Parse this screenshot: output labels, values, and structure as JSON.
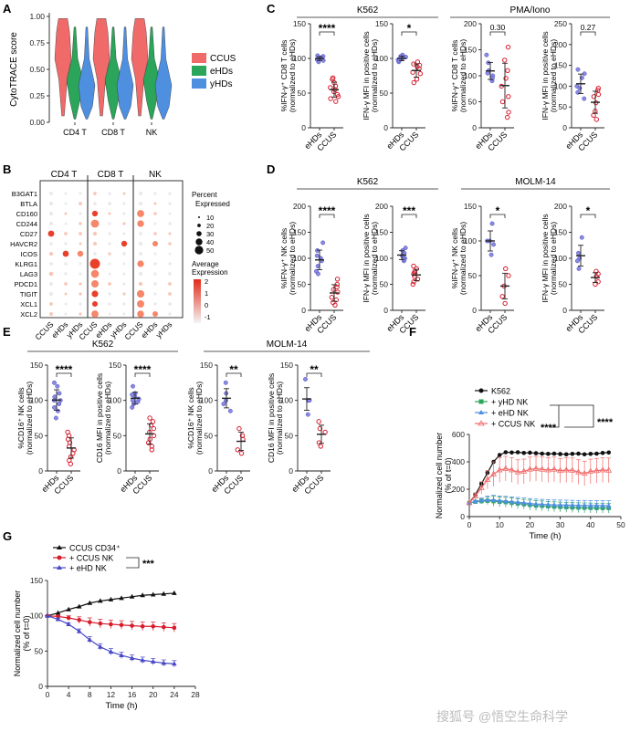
{
  "footer": {
    "watermark": "搜狐号 @悟空生命科学"
  },
  "colors": {
    "ccus": "#f06a6a",
    "ehds": "#2aa55a",
    "yhds": "#4f8fe0",
    "blue": "#4848c8",
    "red": "#d81b2c",
    "black": "#111111",
    "dot": "#e84a3c"
  },
  "panels": {
    "A": "A",
    "B": "B",
    "C": "C",
    "D": "D",
    "E": "E",
    "F": "F",
    "G": "G"
  },
  "chart_data": [
    {
      "id": "A",
      "type": "violin",
      "ylabel": "CytoTRACE score",
      "ylim": [
        0,
        1
      ],
      "yticks": [
        "0.00",
        "0.25",
        "0.50",
        "0.75",
        "1.00"
      ],
      "categories": [
        "CD4 T",
        "CD8 T",
        "NK"
      ],
      "series": [
        {
          "name": "CCUS"
        },
        {
          "name": "eHDs"
        },
        {
          "name": "yHDs"
        }
      ]
    },
    {
      "id": "B",
      "type": "dotplot",
      "groups": [
        "CD4 T",
        "CD8 T",
        "NK"
      ],
      "xlabels": [
        "CCUS",
        "eHDs",
        "yHDs"
      ],
      "genes": [
        "B3GAT1",
        "BTLA",
        "CD160",
        "CD244",
        "CD27",
        "HAVCR2",
        "ICOS",
        "KLRG1",
        "LAG3",
        "PDCD1",
        "TIGIT",
        "XCL1",
        "XCL2"
      ],
      "size_legend": {
        "title": [
          "Percent",
          "Expressed"
        ],
        "values": [
          "10",
          "20",
          "30",
          "40",
          "50"
        ]
      },
      "color_legend": {
        "title": [
          "Average",
          "Expression"
        ],
        "ticks": [
          "2",
          "1",
          "0",
          "-1"
        ]
      }
    },
    {
      "id": "C",
      "type": "scatter",
      "groups": [
        {
          "title": "K562"
        },
        {
          "title": "PMA/Iono"
        }
      ],
      "plots": [
        {
          "ylabel": [
            "%IFN-γ⁺ CD8 T cells",
            "(normalized to eHDs)"
          ],
          "ylim": [
            0,
            150
          ],
          "yticks": [
            "0",
            "50",
            "100",
            "150"
          ],
          "categories": [
            "eHDs",
            "CCUS"
          ],
          "sig": "****",
          "series": [
            {
              "name": "eHDs",
              "values": [
                100,
                98,
                103,
                95,
                101,
                104,
                97,
                100
              ]
            },
            {
              "name": "CCUS",
              "values": [
                55,
                42,
                65,
                48,
                70,
                38,
                60,
                52,
                45,
                72,
                58
              ]
            }
          ]
        },
        {
          "ylabel": [
            "IFN-γ MFI in positive cells",
            "(normalized to eHDs)"
          ],
          "ylim": [
            0,
            150
          ],
          "yticks": [
            "0",
            "50",
            "100",
            "150"
          ],
          "categories": [
            "eHDs",
            "CCUS"
          ],
          "sig": "*",
          "series": [
            {
              "name": "eHDs",
              "values": [
                100,
                95,
                105,
                98,
                102,
                97,
                103
              ]
            },
            {
              "name": "CCUS",
              "values": [
                85,
                78,
                92,
                70,
                88,
                95,
                80,
                65,
                90
              ]
            }
          ]
        },
        {
          "ylabel": [
            "%IFN-γ⁺ CD8 T cells",
            "(normalized to eHDs)"
          ],
          "ylim": [
            0,
            200
          ],
          "yticks": [
            "0",
            "50",
            "100",
            "150",
            "200"
          ],
          "categories": [
            "eHDs",
            "CCUS"
          ],
          "sig": "0.30",
          "series": [
            {
              "name": "eHDs",
              "values": [
                100,
                140,
                125,
                90,
                110,
                105,
                95
              ]
            },
            {
              "name": "CCUS",
              "values": [
                80,
                155,
                110,
                50,
                30,
                95,
                130,
                60,
                20
              ]
            }
          ]
        },
        {
          "ylabel": [
            "IFN-γ MFI in positive cells",
            "(normalized to eHDs)"
          ],
          "ylim": [
            0,
            250
          ],
          "yticks": [
            "0",
            "50",
            "100",
            "150",
            "200",
            "250"
          ],
          "categories": [
            "eHDs",
            "CCUS"
          ],
          "sig": "0.27",
          "series": [
            {
              "name": "eHDs",
              "values": [
                100,
                130,
                70,
                95,
                120,
                85,
                140
              ]
            },
            {
              "name": "CCUS",
              "values": [
                75,
                90,
                40,
                80,
                30,
                60,
                95,
                20
              ]
            }
          ]
        }
      ]
    },
    {
      "id": "D",
      "type": "scatter",
      "groups": [
        {
          "title": "K562"
        },
        {
          "title": "MOLM-14"
        }
      ],
      "plots": [
        {
          "ylabel": [
            "%IFN-γ⁺ NK cells",
            "(normalized to eHDs)"
          ],
          "ylim": [
            0,
            200
          ],
          "yticks": [
            "0",
            "50",
            "100",
            "150",
            "200"
          ],
          "categories": [
            "eHDs",
            "CCUS"
          ],
          "sig": "****",
          "series": [
            {
              "name": "eHDs",
              "values": [
                100,
                130,
                85,
                75,
                115,
                95,
                105,
                70
              ]
            },
            {
              "name": "CCUS",
              "values": [
                35,
                20,
                50,
                10,
                45,
                25,
                60,
                15,
                40
              ]
            }
          ]
        },
        {
          "ylabel": [
            "IFN-γ MFI in positive cells",
            "(normalized to eHDs)"
          ],
          "ylim": [
            0,
            200
          ],
          "yticks": [
            "0",
            "50",
            "100",
            "150",
            "200"
          ],
          "categories": [
            "eHDs",
            "CCUS"
          ],
          "sig": "***",
          "series": [
            {
              "name": "eHDs",
              "values": [
                100,
                110,
                120,
                95,
                105,
                98,
                115
              ]
            },
            {
              "name": "CCUS",
              "values": [
                70,
                60,
                80,
                65,
                55,
                85,
                75,
                50,
                72
              ]
            }
          ]
        },
        {
          "ylabel": [
            "%IFN-γ⁺ NK cells",
            "(normalized to eHDs)"
          ],
          "ylim": [
            0,
            150
          ],
          "yticks": [
            "0",
            "50",
            "100",
            "150"
          ],
          "categories": [
            "eHDs",
            "CCUS"
          ],
          "sig": "*",
          "series": [
            {
              "name": "eHDs",
              "values": [
                100,
                125,
                80,
                100,
                95
              ]
            },
            {
              "name": "CCUS",
              "values": [
                35,
                60,
                20,
                50,
                10
              ]
            }
          ]
        },
        {
          "ylabel": [
            "IFN-γ MFI in positive cells",
            "(normalized to eHDs)"
          ],
          "ylim": [
            0,
            200
          ],
          "yticks": [
            "0",
            "50",
            "100",
            "150",
            "200"
          ],
          "categories": [
            "eHDs",
            "CCUS"
          ],
          "sig": "*",
          "series": [
            {
              "name": "eHDs",
              "values": [
                100,
                140,
                80,
                95,
                110
              ]
            },
            {
              "name": "CCUS",
              "values": [
                65,
                50,
                70,
                75,
                55
              ]
            }
          ]
        }
      ]
    },
    {
      "id": "E",
      "type": "scatter",
      "groups": [
        {
          "title": "K562"
        },
        {
          "title": "MOLM-14"
        }
      ],
      "plots": [
        {
          "ylabel": [
            "%CD16⁺ NK cells",
            "(normalized to eHDs)"
          ],
          "ylim": [
            0,
            150
          ],
          "yticks": [
            "0",
            "50",
            "100",
            "150"
          ],
          "categories": [
            "eHDs",
            "CCUS"
          ],
          "sig": "****",
          "series": [
            {
              "name": "eHDs",
              "values": [
                100,
                120,
                85,
                110,
                95,
                105,
                75,
                125,
                90,
                100
              ]
            },
            {
              "name": "CCUS",
              "values": [
                35,
                20,
                50,
                40,
                10,
                25,
                45,
                15,
                30,
                55
              ]
            }
          ]
        },
        {
          "ylabel": [
            "CD16 MFI in positive cells",
            "(normalized to eHDs)"
          ],
          "ylim": [
            0,
            150
          ],
          "yticks": [
            "0",
            "50",
            "100",
            "150"
          ],
          "categories": [
            "eHDs",
            "CCUS"
          ],
          "sig": "****",
          "series": [
            {
              "name": "eHDs",
              "values": [
                100,
                110,
                95,
                105,
                90,
                120,
                98,
                102,
                108
              ]
            },
            {
              "name": "CCUS",
              "values": [
                55,
                40,
                70,
                50,
                35,
                65,
                45,
                60,
                30,
                75
              ]
            }
          ]
        },
        {
          "ylabel": [
            "%CD16⁺ NK cells",
            "(normalized to eHDs)"
          ],
          "ylim": [
            0,
            150
          ],
          "yticks": [
            "0",
            "50",
            "100",
            "150"
          ],
          "categories": [
            "eHDs",
            "CCUS"
          ],
          "sig": "**",
          "series": [
            {
              "name": "eHDs",
              "values": [
                100,
                125,
                85,
                95,
                110
              ]
            },
            {
              "name": "CCUS",
              "values": [
                45,
                60,
                25,
                50,
                30
              ]
            }
          ]
        },
        {
          "ylabel": [
            "CD16 MFI in positive cells",
            "(normalized to eHDs)"
          ],
          "ylim": [
            0,
            150
          ],
          "yticks": [
            "0",
            "50",
            "100",
            "150"
          ],
          "categories": [
            "eHDs",
            "CCUS"
          ],
          "sig": "**",
          "series": [
            {
              "name": "eHDs",
              "values": [
                100,
                130,
                80,
                100,
                100
              ]
            },
            {
              "name": "CCUS",
              "values": [
                55,
                70,
                40,
                60,
                35
              ]
            }
          ]
        }
      ]
    },
    {
      "id": "F",
      "type": "line",
      "xlabel": "Time (h)",
      "ylabel": [
        "Normalized cell number",
        "(% of t=0)"
      ],
      "xlim": [
        0,
        50
      ],
      "ylim": [
        0,
        600
      ],
      "xticks": [
        "0",
        "10",
        "20",
        "30",
        "40",
        "50"
      ],
      "yticks": [
        "0",
        "200",
        "400",
        "600"
      ],
      "sig": [
        "****",
        "****"
      ],
      "series": [
        {
          "name": "K562",
          "x": [
            0,
            2,
            4,
            6,
            8,
            10,
            12,
            14,
            16,
            18,
            20,
            22,
            24,
            26,
            28,
            30,
            32,
            34,
            36,
            38,
            40,
            42,
            44,
            46
          ],
          "values": [
            100,
            160,
            240,
            320,
            400,
            450,
            470,
            468,
            470,
            465,
            467,
            463,
            460,
            458,
            460,
            457,
            455,
            458,
            460,
            455,
            458,
            460,
            465,
            468
          ]
        },
        {
          "name": "+ yHD NK",
          "x": [
            0,
            2,
            4,
            6,
            8,
            10,
            12,
            14,
            16,
            18,
            20,
            22,
            24,
            26,
            28,
            30,
            32,
            34,
            36,
            38,
            40,
            42,
            44,
            46
          ],
          "values": [
            100,
            108,
            112,
            115,
            112,
            108,
            105,
            100,
            95,
            90,
            85,
            80,
            78,
            75,
            72,
            70,
            68,
            66,
            65,
            64,
            63,
            62,
            62,
            62
          ]
        },
        {
          "name": "+ eHD NK",
          "x": [
            0,
            2,
            4,
            6,
            8,
            10,
            12,
            14,
            16,
            18,
            20,
            22,
            24,
            26,
            28,
            30,
            32,
            34,
            36,
            38,
            40,
            42,
            44,
            46
          ],
          "values": [
            100,
            110,
            118,
            122,
            120,
            115,
            112,
            108,
            104,
            100,
            96,
            92,
            90,
            88,
            86,
            85,
            84,
            83,
            82,
            82,
            81,
            81,
            80,
            80
          ]
        },
        {
          "name": "+ CCUS NK",
          "x": [
            0,
            2,
            4,
            6,
            8,
            10,
            12,
            14,
            16,
            18,
            20,
            22,
            24,
            26,
            28,
            30,
            32,
            34,
            36,
            38,
            40,
            42,
            44,
            46
          ],
          "values": [
            100,
            150,
            210,
            270,
            310,
            340,
            350,
            340,
            325,
            330,
            345,
            350,
            345,
            340,
            345,
            335,
            340,
            338,
            325,
            315,
            330,
            335,
            340,
            338
          ]
        }
      ]
    },
    {
      "id": "G",
      "type": "line",
      "xlabel": "Time (h)",
      "ylabel": [
        "Normalized cell number",
        "(% of t=0)"
      ],
      "xlim": [
        0,
        28
      ],
      "ylim": [
        0,
        150
      ],
      "xticks": [
        "0",
        "4",
        "8",
        "12",
        "16",
        "20",
        "24",
        "28"
      ],
      "yticks": [
        "0",
        "50",
        "100",
        "150"
      ],
      "sig": "***",
      "series": [
        {
          "name": "CCUS CD34⁺",
          "x": [
            0,
            2,
            4,
            6,
            8,
            10,
            12,
            14,
            16,
            18,
            20,
            22,
            24
          ],
          "values": [
            100,
            104,
            109,
            113,
            118,
            121,
            123,
            125,
            127,
            129,
            130,
            131,
            132
          ]
        },
        {
          "name": "+ CCUS NK",
          "x": [
            0,
            2,
            4,
            6,
            8,
            10,
            12,
            14,
            16,
            18,
            20,
            22,
            24
          ],
          "values": [
            100,
            99,
            97,
            94,
            91,
            89,
            88,
            87,
            86,
            85,
            85,
            84,
            83
          ]
        },
        {
          "name": "+ eHD NK",
          "x": [
            0,
            2,
            4,
            6,
            8,
            10,
            12,
            14,
            16,
            18,
            20,
            22,
            24
          ],
          "values": [
            100,
            95,
            88,
            78,
            66,
            56,
            49,
            44,
            40,
            37,
            35,
            33,
            32
          ]
        }
      ]
    }
  ]
}
